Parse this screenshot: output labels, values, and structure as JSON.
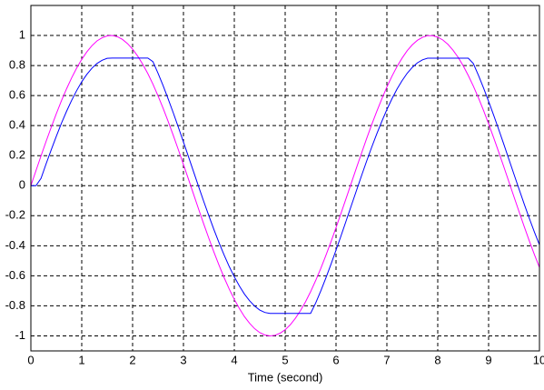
{
  "chart_data": {
    "type": "line",
    "xlabel": "Time (second)",
    "x": [
      0,
      0.1,
      0.2,
      0.3,
      0.4,
      0.5,
      0.6,
      0.7,
      0.8,
      0.9,
      1,
      1.1,
      1.2,
      1.3,
      1.4,
      1.5,
      1.6,
      1.7,
      1.8,
      1.9,
      2,
      2.1,
      2.2,
      2.3,
      2.4,
      2.5,
      2.6,
      2.7,
      2.8,
      2.9,
      3,
      3.1,
      3.2,
      3.3,
      3.4,
      3.5,
      3.6,
      3.7,
      3.8,
      3.9,
      4,
      4.1,
      4.2,
      4.3,
      4.4,
      4.5,
      4.6,
      4.7,
      4.8,
      4.9,
      5,
      5.1,
      5.2,
      5.3,
      5.4,
      5.5,
      5.6,
      5.7,
      5.8,
      5.9,
      6,
      6.1,
      6.2,
      6.3,
      6.4,
      6.5,
      6.6,
      6.7,
      6.8,
      6.9,
      7,
      7.1,
      7.2,
      7.3,
      7.4,
      7.5,
      7.6,
      7.7,
      7.8,
      7.9,
      8,
      8.1,
      8.2,
      8.3,
      8.4,
      8.5,
      8.6,
      8.7,
      8.8,
      8.9,
      9,
      9.1,
      9.2,
      9.3,
      9.4,
      9.5,
      9.6,
      9.7,
      9.8,
      9.9,
      10
    ],
    "series": [
      {
        "color": "#ff00ff",
        "values": [
          0,
          0.1,
          0.199,
          0.296,
          0.389,
          0.479,
          0.565,
          0.644,
          0.717,
          0.783,
          0.841,
          0.891,
          0.932,
          0.964,
          0.985,
          0.997,
          1,
          0.992,
          0.974,
          0.946,
          0.909,
          0.863,
          0.808,
          0.746,
          0.676,
          0.598,
          0.516,
          0.427,
          0.335,
          0.239,
          0.141,
          0.042,
          -0.058,
          -0.158,
          -0.256,
          -0.351,
          -0.443,
          -0.53,
          -0.612,
          -0.688,
          -0.757,
          -0.818,
          -0.872,
          -0.916,
          -0.952,
          -0.978,
          -0.994,
          -1,
          -0.996,
          -0.982,
          -0.959,
          -0.926,
          -0.883,
          -0.832,
          -0.773,
          -0.706,
          -0.631,
          -0.551,
          -0.465,
          -0.374,
          -0.279,
          -0.182,
          -0.083,
          0.017,
          0.117,
          0.215,
          0.312,
          0.405,
          0.494,
          0.578,
          0.657,
          0.729,
          0.794,
          0.85,
          0.899,
          0.938,
          0.968,
          0.988,
          0.999,
          0.999,
          0.989,
          0.97,
          0.941,
          0.902,
          0.855,
          0.799,
          0.734,
          0.663,
          0.585,
          0.501,
          0.412,
          0.319,
          0.223,
          0.125,
          0.025,
          -0.075,
          -0.174,
          -0.272,
          -0.367,
          -0.458,
          -0.544
        ]
      },
      {
        "color": "#0000ff",
        "values": [
          0,
          0,
          0.049,
          0.146,
          0.239,
          0.329,
          0.415,
          0.494,
          0.567,
          0.633,
          0.692,
          0.741,
          0.782,
          0.814,
          0.835,
          0.848,
          0.85,
          0.85,
          0.85,
          0.85,
          0.85,
          0.85,
          0.85,
          0.85,
          0.826,
          0.749,
          0.666,
          0.577,
          0.485,
          0.389,
          0.291,
          0.192,
          0.092,
          -0.008,
          -0.106,
          -0.201,
          -0.293,
          -0.38,
          -0.462,
          -0.538,
          -0.607,
          -0.668,
          -0.722,
          -0.766,
          -0.802,
          -0.828,
          -0.844,
          -0.85,
          -0.85,
          -0.85,
          -0.85,
          -0.85,
          -0.85,
          -0.85,
          -0.85,
          -0.85,
          -0.781,
          -0.701,
          -0.615,
          -0.524,
          -0.429,
          -0.332,
          -0.233,
          -0.133,
          -0.034,
          0.065,
          0.162,
          0.255,
          0.344,
          0.428,
          0.507,
          0.579,
          0.644,
          0.7,
          0.749,
          0.788,
          0.818,
          0.838,
          0.849,
          0.849,
          0.849,
          0.849,
          0.849,
          0.849,
          0.849,
          0.849,
          0.849,
          0.813,
          0.735,
          0.651,
          0.562,
          0.469,
          0.373,
          0.275,
          0.175,
          0.075,
          -0.024,
          -0.122,
          -0.217,
          -0.308,
          -0.394
        ]
      }
    ],
    "xlim": [
      0,
      10
    ],
    "ylim": [
      -1.1,
      1.2
    ],
    "xticks": [
      0,
      1,
      2,
      3,
      4,
      5,
      6,
      7,
      8,
      9,
      10
    ],
    "yticks": [
      -1,
      -0.8,
      -0.6,
      -0.4,
      -0.2,
      0,
      0.2,
      0.4,
      0.6,
      0.8,
      1
    ],
    "grid": true
  }
}
